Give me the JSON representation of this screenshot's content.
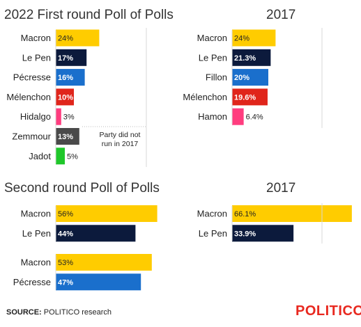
{
  "chart_data": [
    {
      "type": "bar",
      "orientation": "horizontal",
      "title": "2022 First round Poll of Polls",
      "categories": [
        "Macron",
        "Le Pen",
        "Pécresse",
        "Mélenchon",
        "Hidalgo",
        "Zemmour",
        "Jadot"
      ],
      "values": [
        24,
        17,
        16,
        10,
        3,
        13,
        5
      ],
      "labels": [
        "24%",
        "17%",
        "16%",
        "10%",
        "3%",
        "13%",
        "5%"
      ],
      "colors": [
        "#ffcc00",
        "#0c1a3c",
        "#1a6fcc",
        "#e0251b",
        "#ff3d7f",
        "#4a4a4a",
        "#1fc72a"
      ],
      "annotation": "Party did not run in 2017"
    },
    {
      "type": "bar",
      "orientation": "horizontal",
      "title": "2017",
      "categories": [
        "Macron",
        "Le Pen",
        "Fillon",
        "Mélenchon",
        "Hamon"
      ],
      "values": [
        24,
        21.3,
        20,
        19.6,
        6.4
      ],
      "labels": [
        "24%",
        "21.3%",
        "20%",
        "19.6%",
        "6.4%"
      ],
      "colors": [
        "#ffcc00",
        "#0c1a3c",
        "#1a6fcc",
        "#e0251b",
        "#ff3d7f"
      ]
    },
    {
      "type": "bar",
      "orientation": "horizontal",
      "title": "Second round Poll of Polls",
      "groups": [
        {
          "categories": [
            "Macron",
            "Le Pen"
          ],
          "values": [
            56,
            44
          ],
          "labels": [
            "56%",
            "44%"
          ],
          "colors": [
            "#ffcc00",
            "#0c1a3c"
          ]
        },
        {
          "categories": [
            "Macron",
            "Pécresse"
          ],
          "values": [
            53,
            47
          ],
          "labels": [
            "53%",
            "47%"
          ],
          "colors": [
            "#ffcc00",
            "#1a6fcc"
          ]
        }
      ]
    },
    {
      "type": "bar",
      "orientation": "horizontal",
      "title": "2017",
      "categories": [
        "Macron",
        "Le Pen"
      ],
      "values": [
        66.1,
        33.9
      ],
      "labels": [
        "66.1%",
        "33.9%"
      ],
      "colors": [
        "#ffcc00",
        "#0c1a3c"
      ]
    }
  ],
  "source": {
    "label": "SOURCE:",
    "text": "POLITICO research"
  },
  "brand": "POLITICO"
}
